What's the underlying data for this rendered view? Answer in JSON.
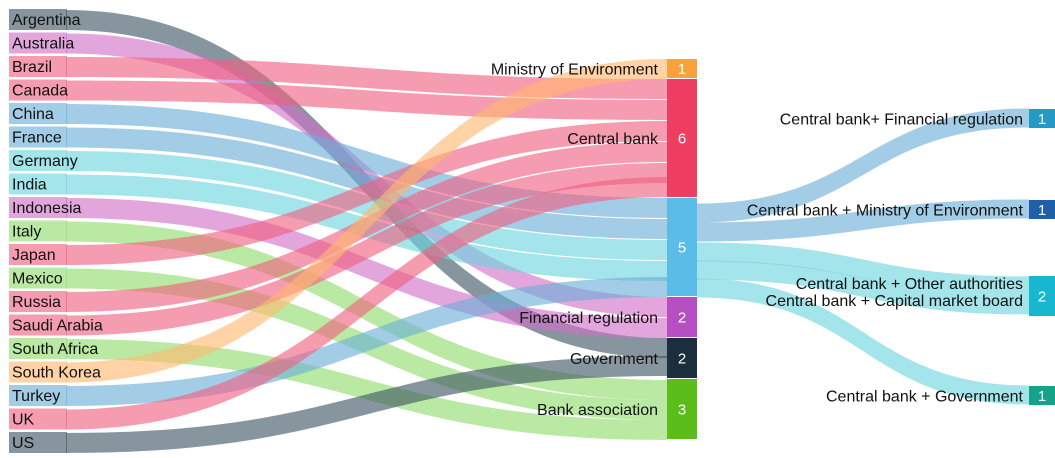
{
  "chart_data": {
    "type": "sankey",
    "colors": {
      "pink": "#f06080",
      "blue": "#6aaed6",
      "teal": "#6cd3de",
      "magenta": "#d070c8",
      "slate": "#3d5563",
      "green": "#90dc6a",
      "orange": "#ffb870",
      "mid_orange": "#f6a33c",
      "mid_red": "#ee3f62",
      "mid_blue": "#5bbde7",
      "mid_purple": "#b64fc1",
      "mid_navy": "#1c2e3d",
      "mid_green": "#5bbd1a",
      "right_teal": "#2399c4",
      "right_navy": "#1e5fa7",
      "right_cyan": "#17b8cf",
      "right_green": "#14a28a"
    },
    "countries": [
      {
        "name": "Argentina"
      },
      {
        "name": "Australia"
      },
      {
        "name": "Brazil"
      },
      {
        "name": "Canada"
      },
      {
        "name": "China"
      },
      {
        "name": "France"
      },
      {
        "name": "Germany"
      },
      {
        "name": "India"
      },
      {
        "name": "Indonesia"
      },
      {
        "name": "Italy"
      },
      {
        "name": "Japan"
      },
      {
        "name": "Mexico"
      },
      {
        "name": "Russia"
      },
      {
        "name": "Saudi Arabia"
      },
      {
        "name": "South Africa"
      },
      {
        "name": "South Korea"
      },
      {
        "name": "Turkey"
      },
      {
        "name": "UK"
      },
      {
        "name": "US"
      }
    ],
    "middle": [
      {
        "name": "Ministry of Environment",
        "value": "1"
      },
      {
        "name": "Central bank",
        "value": "6"
      },
      {
        "name": "",
        "value": "5"
      },
      {
        "name": "Financial regulation",
        "value": "2"
      },
      {
        "name": "Government",
        "value": "2"
      },
      {
        "name": "Bank association",
        "value": "3"
      }
    ],
    "right": [
      {
        "name": "Central bank+ Financial regulation",
        "value": "1"
      },
      {
        "name": "Central bank + Ministry of Environment",
        "value": "1"
      },
      {
        "name": "Central bank + Other authorities",
        "name2": "Central bank + Capital market board",
        "value": "2"
      },
      {
        "name": "Central bank + Government",
        "value": "1"
      }
    ],
    "links": [
      {
        "source": "Argentina",
        "target": "Government"
      },
      {
        "source": "Australia",
        "target": "Financial regulation"
      },
      {
        "source": "Brazil",
        "target": "Central bank"
      },
      {
        "source": "Canada",
        "target": "Central bank"
      },
      {
        "source": "China",
        "target": "Central bank + combination"
      },
      {
        "source": "France",
        "target": "Central bank + combination"
      },
      {
        "source": "Germany",
        "target": "Central bank + combination"
      },
      {
        "source": "India",
        "target": "Central bank + combination"
      },
      {
        "source": "Indonesia",
        "target": "Financial regulation"
      },
      {
        "source": "Italy",
        "target": "Bank association"
      },
      {
        "source": "Japan",
        "target": "Central bank"
      },
      {
        "source": "Mexico",
        "target": "Bank association"
      },
      {
        "source": "Russia",
        "target": "Central bank"
      },
      {
        "source": "Saudi Arabia",
        "target": "Central bank"
      },
      {
        "source": "South Africa",
        "target": "Bank association"
      },
      {
        "source": "South Korea",
        "target": "Ministry of Environment"
      },
      {
        "source": "Turkey",
        "target": "Central bank + combination"
      },
      {
        "source": "UK",
        "target": "Central bank"
      },
      {
        "source": "US",
        "target": "Government"
      },
      {
        "source": "Central bank + combination",
        "target": "Central bank+ Financial regulation"
      },
      {
        "source": "Central bank + combination",
        "target": "Central bank + Ministry of Environment"
      },
      {
        "source": "Central bank + combination",
        "target": "Central bank + Other authorities / Central bank + Capital market board"
      },
      {
        "source": "Central bank + combination",
        "target": "Central bank + Government"
      }
    ]
  }
}
